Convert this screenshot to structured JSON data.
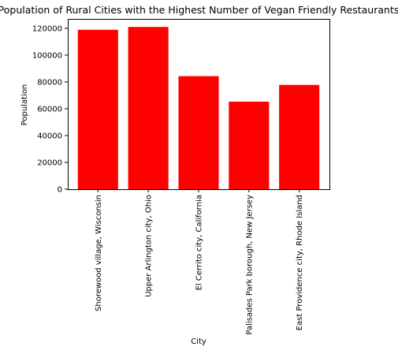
{
  "chart_data": {
    "type": "bar",
    "title": "Population of Rural Cities with the Highest Number of Vegan Friendly Restaurants",
    "xlabel": "City",
    "ylabel": "Population",
    "categories": [
      "Shorewood village, Wisconsin",
      "Upper Arlington city, Ohio",
      "El Cerrito city, California",
      "Palisades Park borough, New Jersey",
      "East Providence city, Rhode Island"
    ],
    "values": [
      118900,
      121000,
      84300,
      65300,
      77800
    ],
    "ylim": [
      0,
      127000
    ],
    "yticks": [
      0,
      20000,
      40000,
      60000,
      80000,
      100000,
      120000
    ],
    "grid": false,
    "legend": "none",
    "bar_color": "#ff0000"
  }
}
